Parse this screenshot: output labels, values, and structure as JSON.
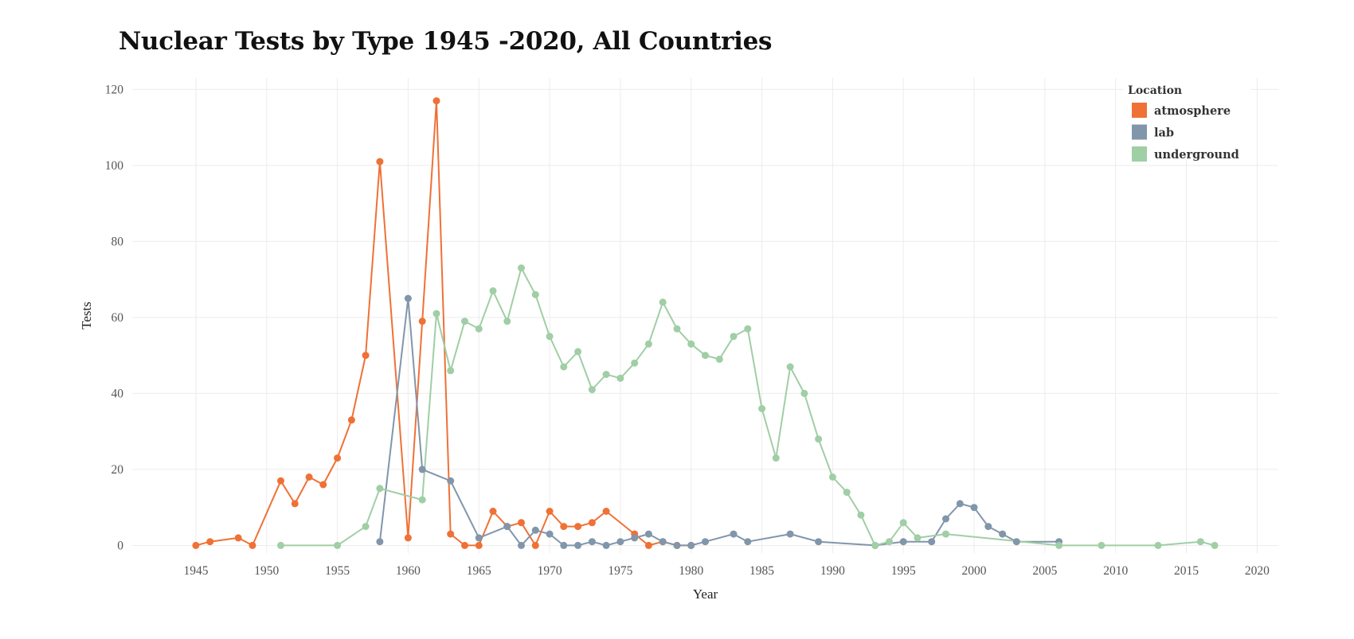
{
  "chart_data": {
    "type": "line",
    "title": "Nuclear Tests by Type 1945 -2020, All Countries",
    "xlabel": "Year",
    "ylabel": "Tests",
    "xlim": [
      1940.5,
      2021.5
    ],
    "ylim": [
      -2,
      123
    ],
    "xticks": [
      1945,
      1950,
      1955,
      1960,
      1965,
      1970,
      1975,
      1980,
      1985,
      1990,
      1995,
      2000,
      2005,
      2010,
      2015,
      2020
    ],
    "yticks": [
      0,
      20,
      40,
      60,
      80,
      100,
      120
    ],
    "grid": true,
    "legend": {
      "title": "Location",
      "position": "top-right"
    },
    "series": [
      {
        "name": "atmosphere",
        "color": "#ef7136",
        "points": [
          [
            1945,
            0
          ],
          [
            1946,
            1
          ],
          [
            1948,
            2
          ],
          [
            1949,
            0
          ],
          [
            1951,
            17
          ],
          [
            1952,
            11
          ],
          [
            1953,
            18
          ],
          [
            1954,
            16
          ],
          [
            1955,
            23
          ],
          [
            1956,
            33
          ],
          [
            1957,
            50
          ],
          [
            1958,
            101
          ],
          [
            1960,
            2
          ],
          [
            1961,
            59
          ],
          [
            1962,
            117
          ],
          [
            1963,
            3
          ],
          [
            1964,
            0
          ],
          [
            1965,
            0
          ],
          [
            1966,
            9
          ],
          [
            1967,
            5
          ],
          [
            1968,
            6
          ],
          [
            1969,
            0
          ],
          [
            1970,
            9
          ],
          [
            1971,
            5
          ],
          [
            1972,
            5
          ],
          [
            1973,
            6
          ],
          [
            1974,
            9
          ],
          [
            1976,
            3
          ],
          [
            1977,
            0
          ],
          [
            1978,
            1
          ],
          [
            1979,
            0
          ],
          [
            1980,
            0
          ]
        ]
      },
      {
        "name": "lab",
        "color": "#8196aa",
        "points": [
          [
            1958,
            1
          ],
          [
            1960,
            65
          ],
          [
            1961,
            20
          ],
          [
            1963,
            17
          ],
          [
            1965,
            2
          ],
          [
            1967,
            5
          ],
          [
            1968,
            0
          ],
          [
            1969,
            4
          ],
          [
            1970,
            3
          ],
          [
            1971,
            0
          ],
          [
            1972,
            0
          ],
          [
            1973,
            1
          ],
          [
            1974,
            0
          ],
          [
            1975,
            1
          ],
          [
            1976,
            2
          ],
          [
            1977,
            3
          ],
          [
            1978,
            1
          ],
          [
            1979,
            0
          ],
          [
            1980,
            0
          ],
          [
            1981,
            1
          ],
          [
            1983,
            3
          ],
          [
            1984,
            1
          ],
          [
            1987,
            3
          ],
          [
            1989,
            1
          ],
          [
            1993,
            0
          ],
          [
            1995,
            1
          ],
          [
            1997,
            1
          ],
          [
            1998,
            7
          ],
          [
            1999,
            11
          ],
          [
            2000,
            10
          ],
          [
            2001,
            5
          ],
          [
            2002,
            3
          ],
          [
            2003,
            1
          ],
          [
            2006,
            1
          ]
        ]
      },
      {
        "name": "underground",
        "color": "#a0cea5",
        "points": [
          [
            1951,
            0
          ],
          [
            1955,
            0
          ],
          [
            1957,
            5
          ],
          [
            1958,
            15
          ],
          [
            1961,
            12
          ],
          [
            1962,
            61
          ],
          [
            1963,
            46
          ],
          [
            1964,
            59
          ],
          [
            1965,
            57
          ],
          [
            1966,
            67
          ],
          [
            1967,
            59
          ],
          [
            1968,
            73
          ],
          [
            1969,
            66
          ],
          [
            1970,
            55
          ],
          [
            1971,
            47
          ],
          [
            1972,
            51
          ],
          [
            1973,
            41
          ],
          [
            1974,
            45
          ],
          [
            1975,
            44
          ],
          [
            1976,
            48
          ],
          [
            1977,
            53
          ],
          [
            1978,
            64
          ],
          [
            1979,
            57
          ],
          [
            1980,
            53
          ],
          [
            1981,
            50
          ],
          [
            1982,
            49
          ],
          [
            1983,
            55
          ],
          [
            1984,
            57
          ],
          [
            1985,
            36
          ],
          [
            1986,
            23
          ],
          [
            1987,
            47
          ],
          [
            1988,
            40
          ],
          [
            1989,
            28
          ],
          [
            1990,
            18
          ],
          [
            1991,
            14
          ],
          [
            1992,
            8
          ],
          [
            1993,
            0
          ],
          [
            1994,
            1
          ],
          [
            1995,
            6
          ],
          [
            1996,
            2
          ],
          [
            1998,
            3
          ],
          [
            2006,
            0
          ],
          [
            2009,
            0
          ],
          [
            2013,
            0
          ],
          [
            2016,
            1
          ],
          [
            2017,
            0
          ]
        ]
      }
    ]
  }
}
